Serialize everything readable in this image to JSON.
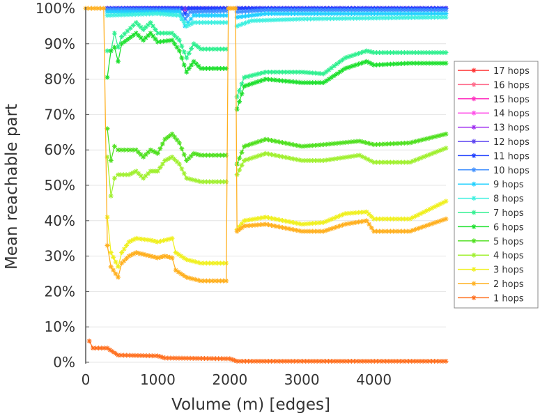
{
  "chart_data": {
    "type": "line",
    "title": "",
    "xlabel": "Volume (m) [edges]",
    "ylabel": "Mean reachable part",
    "xlim": [
      0,
      5000
    ],
    "ylim": [
      0,
      100
    ],
    "xticks": [
      "0",
      "1000",
      "2000",
      "3000",
      "4000"
    ],
    "xtick_values": [
      0,
      1000,
      2000,
      3000,
      4000
    ],
    "yticks": [
      "0%",
      "10%",
      "20%",
      "30%",
      "40%",
      "50%",
      "60%",
      "70%",
      "80%",
      "90%",
      "100%"
    ],
    "ytick_values": [
      0,
      10,
      20,
      30,
      40,
      50,
      60,
      70,
      80,
      90,
      100
    ],
    "grid": "horizontal",
    "legend_position": "right",
    "series": [
      {
        "name": "17 hops",
        "color": "#ff3030",
        "points": [
          [
            300,
            100
          ],
          [
            1950,
            100
          ],
          null,
          [
            2100,
            100
          ],
          [
            5000,
            100
          ]
        ]
      },
      {
        "name": "16 hops",
        "color": "#ff6a8a",
        "points": [
          [
            300,
            100
          ],
          [
            1950,
            100
          ],
          null,
          [
            2100,
            100
          ],
          [
            5000,
            100
          ]
        ]
      },
      {
        "name": "15 hops",
        "color": "#ff30c0",
        "points": [
          [
            300,
            100
          ],
          [
            1330,
            100
          ],
          [
            1380,
            99.5
          ],
          [
            1430,
            100
          ],
          [
            1950,
            100
          ],
          null,
          [
            2100,
            100
          ],
          [
            5000,
            100
          ]
        ]
      },
      {
        "name": "14 hops",
        "color": "#ff50e8",
        "points": [
          [
            300,
            100
          ],
          [
            1950,
            100
          ],
          null,
          [
            2100,
            100
          ],
          [
            5000,
            100
          ]
        ]
      },
      {
        "name": "13 hops",
        "color": "#a030f0",
        "points": [
          [
            300,
            100
          ],
          [
            1950,
            100
          ],
          null,
          [
            2100,
            100
          ],
          [
            5000,
            100
          ]
        ]
      },
      {
        "name": "12 hops",
        "color": "#5a40f0",
        "points": [
          [
            300,
            100
          ],
          [
            1950,
            100
          ],
          null,
          [
            2100,
            100
          ],
          [
            5000,
            100
          ]
        ]
      },
      {
        "name": "11 hops",
        "color": "#2040ff",
        "points": [
          [
            300,
            100
          ],
          [
            1330,
            100
          ],
          [
            1380,
            98.5
          ],
          [
            1430,
            100
          ],
          [
            1950,
            100
          ],
          null,
          [
            2100,
            100
          ],
          [
            5000,
            100
          ]
        ]
      },
      {
        "name": "10 hops",
        "color": "#4090ff",
        "points": [
          [
            300,
            99.7
          ],
          [
            1300,
            99.5
          ],
          [
            1380,
            97
          ],
          [
            1450,
            99
          ],
          [
            1950,
            99.3
          ],
          null,
          [
            2100,
            99
          ],
          [
            2500,
            99.5
          ],
          [
            5000,
            99.5
          ]
        ]
      },
      {
        "name": "9 hops",
        "color": "#20d0ff",
        "points": [
          [
            300,
            99
          ],
          [
            1300,
            99
          ],
          [
            1380,
            95
          ],
          [
            1500,
            98
          ],
          [
            1950,
            98
          ],
          null,
          [
            2100,
            97.5
          ],
          [
            2500,
            98.5
          ],
          [
            5000,
            98.5
          ]
        ]
      },
      {
        "name": "8 hops",
        "color": "#40f0e0",
        "points": [
          [
            300,
            98
          ],
          [
            1000,
            98.5
          ],
          [
            1300,
            98
          ],
          [
            1400,
            95
          ],
          [
            1500,
            96
          ],
          [
            1950,
            96
          ],
          null,
          [
            2100,
            95
          ],
          [
            2300,
            96.5
          ],
          [
            3000,
            97
          ],
          [
            5000,
            97.5
          ]
        ]
      },
      {
        "name": "7 hops",
        "color": "#30f090",
        "points": [
          [
            300,
            88
          ],
          [
            350,
            88
          ],
          [
            400,
            93
          ],
          [
            450,
            89
          ],
          [
            500,
            92
          ],
          [
            700,
            96
          ],
          [
            800,
            94
          ],
          [
            900,
            96
          ],
          [
            1000,
            93
          ],
          [
            1200,
            93
          ],
          [
            1300,
            91
          ],
          [
            1400,
            86
          ],
          [
            1500,
            90
          ],
          [
            1600,
            88.5
          ],
          [
            1950,
            88.5
          ],
          null,
          [
            2100,
            75
          ],
          [
            2200,
            80.5
          ],
          [
            2500,
            82
          ],
          [
            3000,
            82
          ],
          [
            3300,
            81.5
          ],
          [
            3600,
            86
          ],
          [
            3900,
            88
          ],
          [
            4000,
            87.5
          ],
          [
            4500,
            87.5
          ],
          [
            5000,
            87.5
          ]
        ]
      },
      {
        "name": "6 hops",
        "color": "#20e030",
        "points": [
          [
            300,
            80.5
          ],
          [
            350,
            88
          ],
          [
            400,
            89
          ],
          [
            450,
            85
          ],
          [
            500,
            90
          ],
          [
            700,
            93
          ],
          [
            800,
            91
          ],
          [
            900,
            93
          ],
          [
            1000,
            90.5
          ],
          [
            1200,
            91
          ],
          [
            1300,
            88
          ],
          [
            1400,
            82
          ],
          [
            1500,
            85
          ],
          [
            1600,
            83
          ],
          [
            1950,
            83
          ],
          null,
          [
            2100,
            71.5
          ],
          [
            2200,
            78
          ],
          [
            2500,
            80
          ],
          [
            3000,
            79
          ],
          [
            3300,
            79
          ],
          [
            3600,
            83
          ],
          [
            3900,
            85
          ],
          [
            4000,
            84
          ],
          [
            4500,
            84.5
          ],
          [
            5000,
            84.5
          ]
        ]
      },
      {
        "name": "5 hops",
        "color": "#50e020",
        "points": [
          [
            300,
            66
          ],
          [
            350,
            57
          ],
          [
            400,
            61
          ],
          [
            450,
            60
          ],
          [
            700,
            60
          ],
          [
            800,
            58
          ],
          [
            900,
            60
          ],
          [
            1000,
            59
          ],
          [
            1100,
            63
          ],
          [
            1200,
            64.5
          ],
          [
            1300,
            62
          ],
          [
            1400,
            57
          ],
          [
            1500,
            59
          ],
          [
            1600,
            58.5
          ],
          [
            1950,
            58.5
          ],
          null,
          [
            2100,
            56
          ],
          [
            2200,
            61
          ],
          [
            2500,
            63
          ],
          [
            3000,
            61
          ],
          [
            3300,
            61.5
          ],
          [
            3800,
            62.5
          ],
          [
            4000,
            61.5
          ],
          [
            4500,
            62
          ],
          [
            5000,
            64.5
          ]
        ]
      },
      {
        "name": "4 hops",
        "color": "#a0f030",
        "points": [
          [
            300,
            58
          ],
          [
            350,
            47
          ],
          [
            400,
            52
          ],
          [
            450,
            53
          ],
          [
            600,
            53
          ],
          [
            700,
            54
          ],
          [
            800,
            52
          ],
          [
            900,
            54
          ],
          [
            1000,
            54
          ],
          [
            1100,
            57
          ],
          [
            1200,
            58
          ],
          [
            1300,
            56
          ],
          [
            1400,
            52
          ],
          [
            1600,
            51
          ],
          [
            1950,
            51
          ],
          null,
          [
            2100,
            53
          ],
          [
            2200,
            57
          ],
          [
            2500,
            59
          ],
          [
            3000,
            57
          ],
          [
            3300,
            57
          ],
          [
            3800,
            58.5
          ],
          [
            4000,
            56.5
          ],
          [
            4500,
            56.5
          ],
          [
            5000,
            60.5
          ]
        ]
      },
      {
        "name": "3 hops",
        "color": "#f0f020",
        "points": [
          [
            300,
            41
          ],
          [
            350,
            31
          ],
          [
            450,
            27
          ],
          [
            500,
            31
          ],
          [
            600,
            34
          ],
          [
            700,
            35
          ],
          [
            900,
            34.5
          ],
          [
            1000,
            34
          ],
          [
            1200,
            35
          ],
          [
            1250,
            31
          ],
          [
            1400,
            29
          ],
          [
            1600,
            28
          ],
          [
            1950,
            28
          ],
          null,
          [
            2100,
            37.5
          ],
          [
            2200,
            40
          ],
          [
            2500,
            41
          ],
          [
            3000,
            39
          ],
          [
            3300,
            39.5
          ],
          [
            3600,
            42
          ],
          [
            3900,
            42.5
          ],
          [
            4000,
            40.5
          ],
          [
            4500,
            40.5
          ],
          [
            5000,
            45.5
          ]
        ]
      },
      {
        "name": "2 hops",
        "color": "#ffb020",
        "points": [
          [
            0,
            100
          ],
          [
            250,
            100
          ],
          [
            300,
            33
          ],
          [
            350,
            27
          ],
          [
            450,
            24
          ],
          [
            500,
            28
          ],
          [
            600,
            30
          ],
          [
            700,
            31
          ],
          [
            800,
            30.5
          ],
          [
            900,
            30
          ],
          [
            1000,
            29.5
          ],
          [
            1100,
            30
          ],
          [
            1200,
            29.5
          ],
          [
            1250,
            26
          ],
          [
            1400,
            24
          ],
          [
            1600,
            23
          ],
          [
            1950,
            23
          ],
          [
            1980,
            100
          ],
          [
            2080,
            100
          ],
          [
            2100,
            37
          ],
          [
            2200,
            38.5
          ],
          [
            2500,
            39
          ],
          [
            3000,
            37
          ],
          [
            3300,
            37
          ],
          [
            3600,
            39
          ],
          [
            3900,
            40
          ],
          [
            4000,
            37
          ],
          [
            4500,
            37
          ],
          [
            5000,
            40.5
          ]
        ]
      },
      {
        "name": "1 hops",
        "color": "#ff7020",
        "points": [
          [
            50,
            6
          ],
          [
            100,
            4
          ],
          [
            300,
            4
          ],
          [
            450,
            2
          ],
          [
            1000,
            1.8
          ],
          [
            1100,
            1.2
          ],
          [
            2000,
            1
          ],
          [
            2100,
            0.3
          ],
          [
            5000,
            0.3
          ]
        ]
      }
    ]
  }
}
